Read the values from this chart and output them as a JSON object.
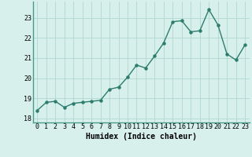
{
  "x": [
    0,
    1,
    2,
    3,
    4,
    5,
    6,
    7,
    8,
    9,
    10,
    11,
    12,
    13,
    14,
    15,
    16,
    17,
    18,
    19,
    20,
    21,
    22,
    23
  ],
  "y": [
    18.4,
    18.8,
    18.85,
    18.55,
    18.75,
    18.8,
    18.85,
    18.9,
    19.45,
    19.55,
    20.05,
    20.65,
    20.5,
    21.1,
    21.75,
    22.8,
    22.85,
    22.3,
    22.35,
    23.4,
    22.65,
    21.2,
    20.9,
    21.65
  ],
  "line_color": "#2d7d6e",
  "bg_color": "#d8f0ec",
  "grid_color": "#b0d8d0",
  "xlabel": "Humidex (Indice chaleur)",
  "ylim": [
    17.8,
    23.8
  ],
  "xlim": [
    -0.5,
    23.5
  ],
  "yticks": [
    18,
    19,
    20,
    21,
    22,
    23
  ],
  "xticks": [
    0,
    1,
    2,
    3,
    4,
    5,
    6,
    7,
    8,
    9,
    10,
    11,
    12,
    13,
    14,
    15,
    16,
    17,
    18,
    19,
    20,
    21,
    22,
    23
  ],
  "tick_fontsize": 6.0,
  "xlabel_fontsize": 7.0,
  "marker_size": 2.2,
  "line_width": 1.0
}
